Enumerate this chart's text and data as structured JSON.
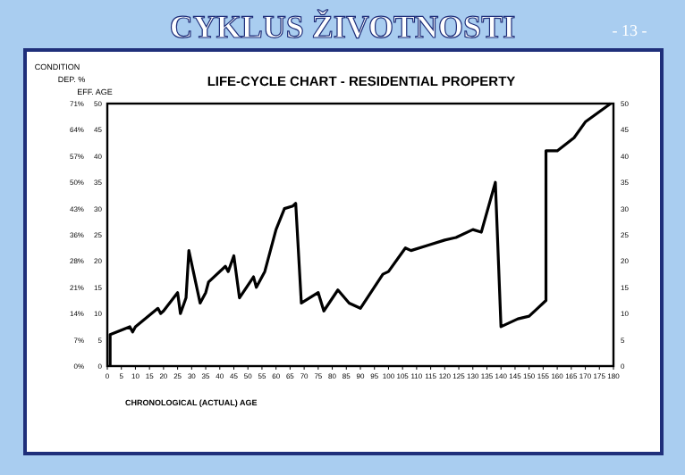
{
  "chart_data": {
    "type": "line",
    "title": "CYKLUS ŽIVOTNOSTI",
    "subtitle": "LIFE-CYCLE CHART - RESIDENTIAL PROPERTY",
    "xlabel": "CHRONOLOGICAL (ACTUAL) AGE",
    "ylabel": "EFF. AGE",
    "y3label": "DEP. %",
    "annotations": [
      "- 13 -",
      "CONDITION"
    ],
    "x": [
      1,
      1,
      8,
      9,
      10,
      18,
      19,
      20,
      25,
      26,
      28,
      29,
      33,
      35,
      36,
      42,
      43,
      45,
      47,
      52,
      53,
      56,
      60,
      63,
      66,
      67,
      69,
      75,
      77,
      82,
      86,
      90,
      98,
      100,
      106,
      108,
      114,
      120,
      124,
      130,
      133,
      138,
      140,
      146,
      150,
      153,
      156,
      156,
      160,
      166,
      170,
      179
    ],
    "series": [
      {
        "color": "#000000",
        "values": [
          0,
          6,
          7.5,
          6.5,
          7.5,
          11,
          10,
          10.5,
          14,
          10,
          13,
          22,
          12,
          14,
          16,
          19,
          18,
          21,
          13,
          17,
          15,
          18,
          26,
          30,
          30.5,
          31,
          12,
          14,
          10.5,
          14.5,
          12,
          11,
          17.5,
          18,
          22.5,
          22,
          23,
          24,
          24.5,
          26,
          25.5,
          35,
          7.5,
          9,
          9.5,
          11,
          12.5,
          41,
          41,
          43.5,
          46.5,
          50
        ]
      }
    ],
    "xlim": [
      0,
      180
    ],
    "xticks": [
      0,
      5,
      10,
      15,
      20,
      25,
      30,
      35,
      40,
      45,
      50,
      55,
      60,
      65,
      70,
      75,
      80,
      85,
      90,
      95,
      100,
      105,
      110,
      115,
      120,
      125,
      130,
      135,
      140,
      145,
      150,
      155,
      160,
      165,
      170,
      175,
      180
    ],
    "ylim": [
      0,
      50
    ],
    "yticks": [
      0,
      5,
      10,
      15,
      20,
      25,
      30,
      35,
      40,
      45,
      50
    ],
    "y2lim": [
      0,
      50
    ],
    "y2ticks": [
      0,
      5,
      10,
      15,
      20,
      25,
      30,
      35,
      40,
      45,
      50
    ],
    "y3lim": [
      0,
      71
    ],
    "y3ticks": [
      {
        "value": 0,
        "label": "0%"
      },
      {
        "value": 7.1,
        "label": "7%"
      },
      {
        "value": 14.2,
        "label": "14%"
      },
      {
        "value": 21.3,
        "label": "21%"
      },
      {
        "value": 28.4,
        "label": "28%"
      },
      {
        "value": 35.5,
        "label": "36%"
      },
      {
        "value": 42.6,
        "label": "43%"
      },
      {
        "value": 49.7,
        "label": "50%"
      },
      {
        "value": 56.8,
        "label": "57%"
      },
      {
        "value": 63.9,
        "label": "64%"
      },
      {
        "value": 71,
        "label": "71%"
      }
    ],
    "marker": "none",
    "line_style": "solid"
  }
}
